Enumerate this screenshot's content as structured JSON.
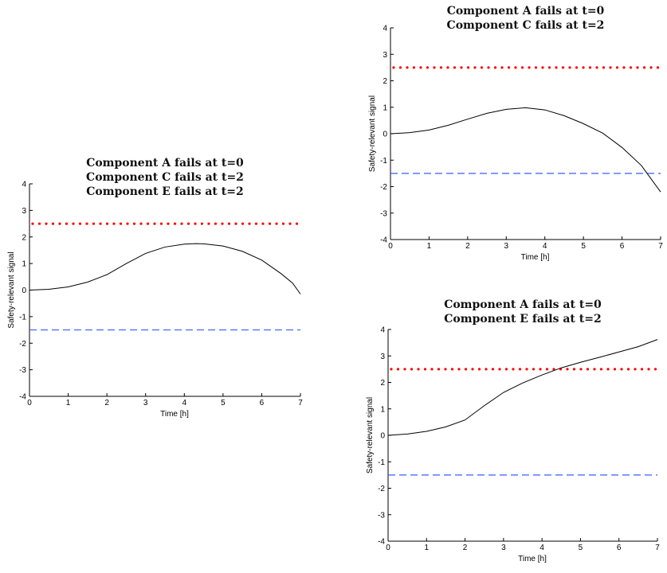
{
  "chart_data": [
    {
      "type": "line",
      "title_lines": [
        "Component A fails at t=0",
        "Component C fails at t=2",
        "Component E fails at t=2"
      ],
      "xlabel": "Time [h]",
      "ylabel": "Safety-relevant signal",
      "xlim": [
        0,
        7
      ],
      "ylim": [
        -4,
        4
      ],
      "xticks": [
        0,
        1,
        2,
        3,
        4,
        5,
        6,
        7
      ],
      "yticks": [
        -4,
        -3,
        -2,
        -1,
        0,
        1,
        2,
        3,
        4
      ],
      "grid": false,
      "thresholds": {
        "upper": 2.5,
        "lower": -1.5,
        "upper_color": "#ff0000",
        "lower_color": "#3b5bff"
      },
      "series": [
        {
          "color": "#000000",
          "x": [
            0,
            0.5,
            1,
            1.5,
            2,
            2.5,
            3,
            3.5,
            4,
            4.3,
            4.5,
            5,
            5.5,
            6,
            6.5,
            6.8,
            7
          ],
          "y": [
            0,
            0.03,
            0.12,
            0.3,
            0.58,
            1.0,
            1.38,
            1.62,
            1.73,
            1.75,
            1.74,
            1.66,
            1.46,
            1.13,
            0.62,
            0.26,
            -0.15
          ]
        }
      ]
    },
    {
      "type": "line",
      "title_lines": [
        "Component A fails at t=0",
        "Component C fails at t=2"
      ],
      "xlabel": "Time [h]",
      "ylabel": "Safety-relevant signal",
      "xlim": [
        0,
        7
      ],
      "ylim": [
        -4,
        4
      ],
      "xticks": [
        0,
        1,
        2,
        3,
        4,
        5,
        6,
        7
      ],
      "yticks": [
        -4,
        -3,
        -2,
        -1,
        0,
        1,
        2,
        3,
        4
      ],
      "grid": false,
      "thresholds": {
        "upper": 2.5,
        "lower": -1.5,
        "upper_color": "#ff0000",
        "lower_color": "#3b5bff"
      },
      "series": [
        {
          "color": "#000000",
          "x": [
            0,
            0.5,
            1,
            1.5,
            2,
            2.5,
            3,
            3.5,
            4,
            4.5,
            5,
            5.5,
            6,
            6.5,
            7
          ],
          "y": [
            0,
            0.04,
            0.14,
            0.32,
            0.55,
            0.77,
            0.92,
            0.98,
            0.9,
            0.68,
            0.38,
            0.02,
            -0.52,
            -1.2,
            -2.2
          ]
        }
      ]
    },
    {
      "type": "line",
      "title_lines": [
        "Component A fails at t=0",
        "Component E fails at t=2"
      ],
      "xlabel": "Time [h]",
      "ylabel": "Safety-relevant signal",
      "xlim": [
        0,
        7
      ],
      "ylim": [
        -4,
        4
      ],
      "xticks": [
        0,
        1,
        2,
        3,
        4,
        5,
        6,
        7
      ],
      "yticks": [
        -4,
        -3,
        -2,
        -1,
        0,
        1,
        2,
        3,
        4
      ],
      "grid": false,
      "thresholds": {
        "upper": 2.5,
        "lower": -1.5,
        "upper_color": "#ff0000",
        "lower_color": "#3b5bff"
      },
      "series": [
        {
          "color": "#000000",
          "x": [
            0,
            0.5,
            1,
            1.5,
            2,
            2.5,
            3,
            3.5,
            4,
            4.5,
            5,
            5.5,
            6,
            6.5,
            7
          ],
          "y": [
            0,
            0.05,
            0.15,
            0.32,
            0.58,
            1.12,
            1.62,
            1.98,
            2.28,
            2.55,
            2.76,
            2.95,
            3.15,
            3.35,
            3.62
          ]
        }
      ]
    }
  ]
}
